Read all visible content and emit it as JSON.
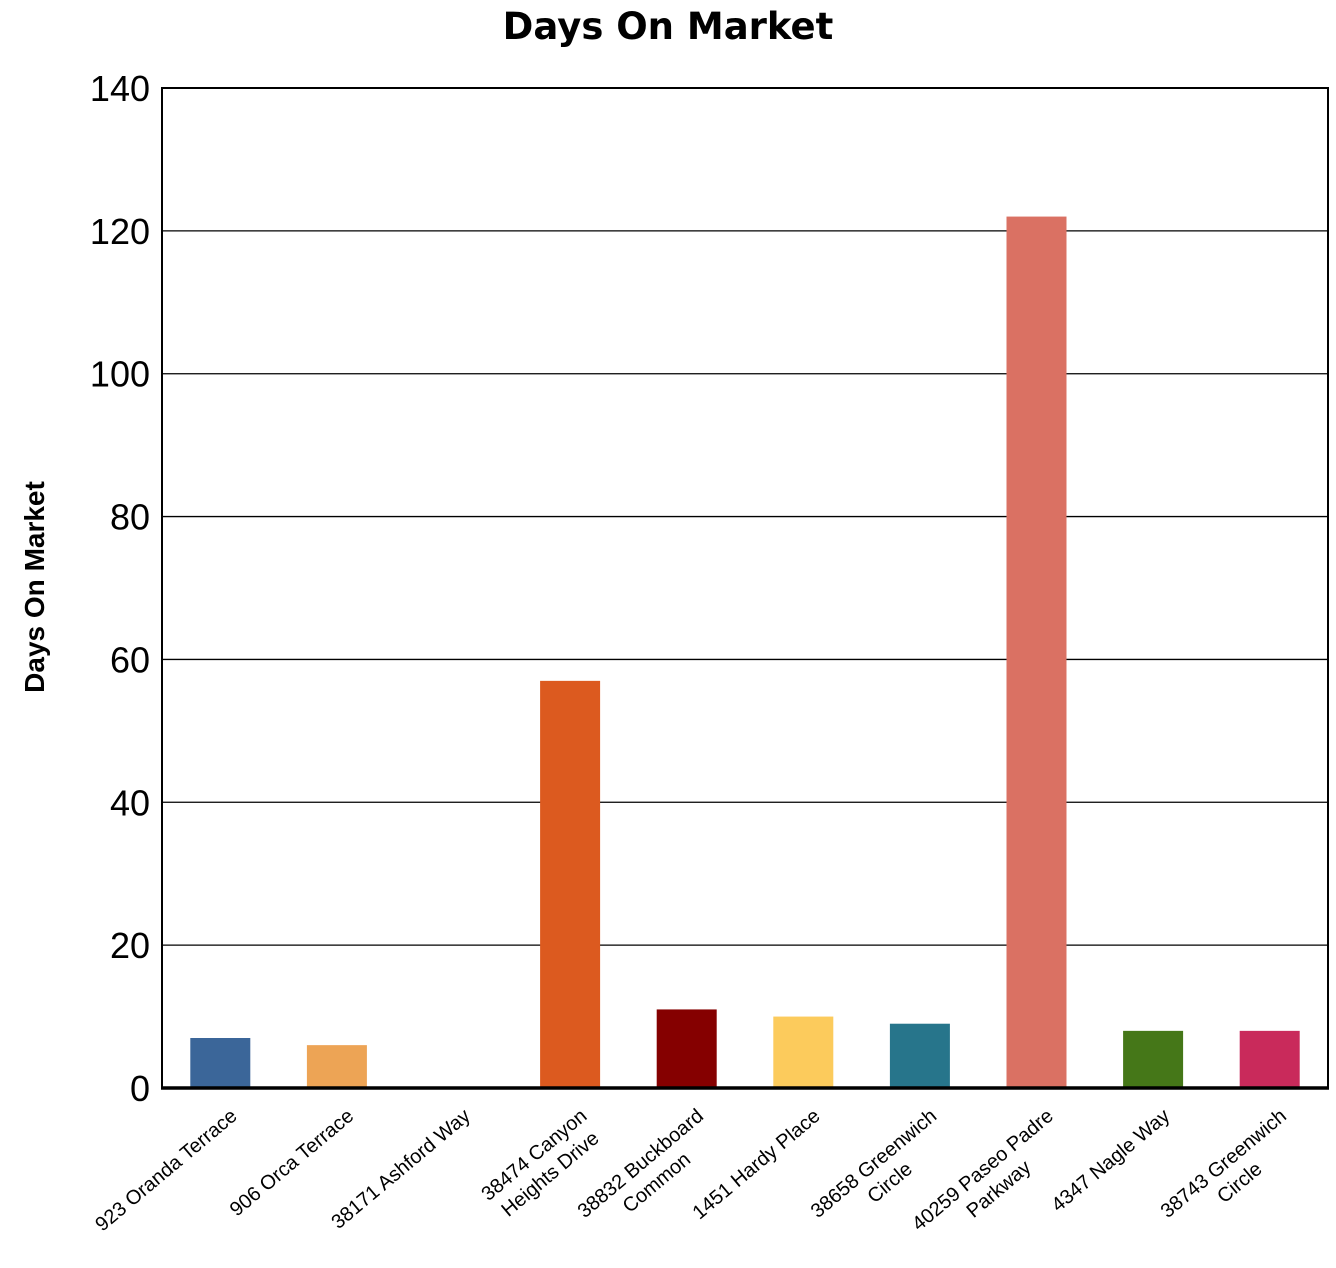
{
  "chart_data": {
    "type": "bar",
    "title": "Days On Market",
    "xlabel": "",
    "ylabel": "Days On Market",
    "ylim": [
      0,
      140
    ],
    "yticks": [
      "0",
      "20",
      "40",
      "60",
      "80",
      "100",
      "120",
      "140"
    ],
    "grid": true,
    "categories": [
      [
        "923 Oranda Terrace"
      ],
      [
        "906 Orca Terrace"
      ],
      [
        "38171 Ashford Way"
      ],
      [
        "38474 Canyon",
        "Heights Drive"
      ],
      [
        "38832 Buckboard",
        "Common"
      ],
      [
        "1451 Hardy Place"
      ],
      [
        "38658 Greenwich",
        "Circle"
      ],
      [
        "40259 Paseo Padre",
        "Parkway"
      ],
      [
        "4347 Nagle Way"
      ],
      [
        "38743 Greenwich",
        "Circle"
      ]
    ],
    "values": [
      7,
      6,
      0,
      57,
      11,
      10,
      9,
      122,
      8,
      8
    ],
    "colors": [
      "#3b6699",
      "#eda455",
      "#888888",
      "#dc5a1f",
      "#850000",
      "#fccb5c",
      "#27758b",
      "#da7163",
      "#457718",
      "#c92a5b"
    ]
  }
}
